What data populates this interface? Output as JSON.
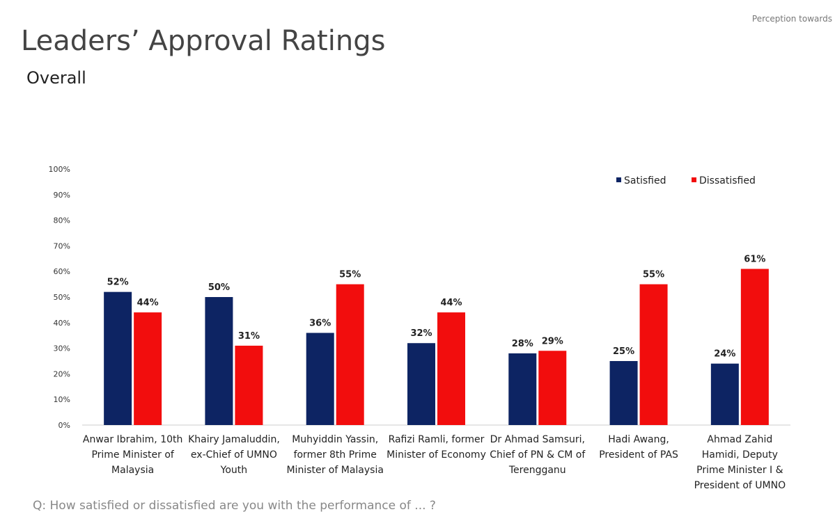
{
  "header": {
    "corner_note": "Perception towards",
    "title": "Leaders’ Approval Ratings",
    "subtitle": "Overall"
  },
  "chart_data": {
    "type": "bar",
    "categories": [
      "Anwar Ibrahim, 10th Prime Minister of Malaysia",
      "Khairy Jamaluddin, ex-Chief of UMNO Youth",
      "Muhyiddin Yassin, former 8th Prime Minister of Malaysia",
      "Rafizi Ramli, former Minister of Economy",
      "Dr Ahmad Samsuri, Chief of PN & CM of Terengganu",
      "Hadi Awang, President of PAS",
      "Ahmad Zahid Hamidi, Deputy Prime Minister I & President of UMNO"
    ],
    "series": [
      {
        "name": "Satisfied",
        "color": "#0d2463",
        "values": [
          52,
          50,
          36,
          32,
          28,
          25,
          24
        ],
        "value_labels": [
          "52%",
          "50%",
          "36%",
          "32%",
          "28%",
          "25%",
          "24%"
        ]
      },
      {
        "name": "Dissatisfied",
        "color": "#f20d0d",
        "values": [
          44,
          31,
          55,
          44,
          29,
          55,
          61
        ],
        "value_labels": [
          "44%",
          "31%",
          "55%",
          "44%",
          "29%",
          "55%",
          "61%"
        ]
      }
    ],
    "ylim": [
      0,
      100
    ],
    "yticks": [
      {
        "value": 0,
        "label": "0%"
      },
      {
        "value": 10,
        "label": "10%"
      },
      {
        "value": 20,
        "label": "20%"
      },
      {
        "value": 30,
        "label": "30%"
      },
      {
        "value": 40,
        "label": "40%"
      },
      {
        "value": 50,
        "label": "50%"
      },
      {
        "value": 60,
        "label": "60%"
      },
      {
        "value": 70,
        "label": "70%"
      },
      {
        "value": 80,
        "label": "80%"
      },
      {
        "value": 90,
        "label": "90%"
      },
      {
        "value": 100,
        "label": "100%"
      }
    ],
    "legend": "top-right",
    "footnote": "Q: How satisfied or dissatisfied are you with the performance of ... ?"
  }
}
